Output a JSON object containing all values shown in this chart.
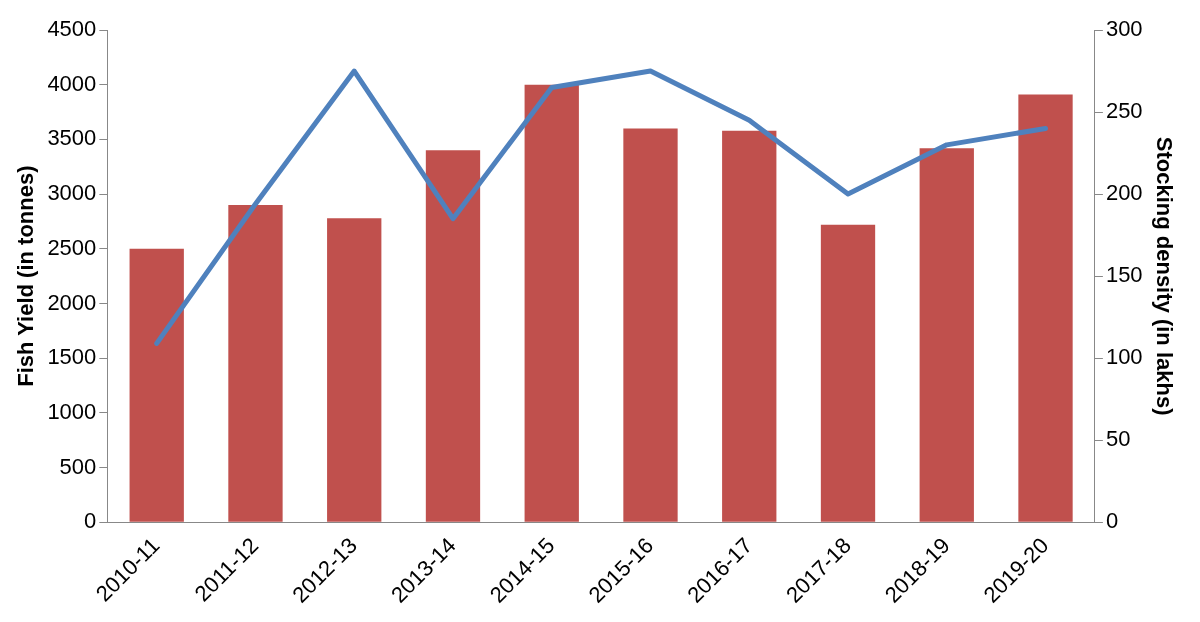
{
  "chart_data": {
    "type": "bar",
    "ylabel": "Fish Yield (in tonnes)",
    "y2label": "Stocking density (in lakhs)",
    "categories": [
      "2010-11",
      "2011-12",
      "2012-13",
      "2013-14",
      "2014-15",
      "2015-16",
      "2016-17",
      "2017-18",
      "2018-19",
      "2019-20"
    ],
    "series": [
      {
        "color": "#c0504d",
        "values": [
          2500,
          2900,
          2780,
          3400,
          4000,
          3600,
          3580,
          2720,
          3420,
          3910
        ]
      },
      {
        "type": "line",
        "axis": "y2",
        "color": "#4f81bd",
        "marker": "none",
        "line_style": "solid",
        "values": [
          109,
          194,
          275,
          185,
          265,
          275,
          245,
          200,
          230,
          240
        ]
      }
    ],
    "ylim": [
      0,
      4500
    ],
    "yticks": [
      0,
      500,
      1000,
      1500,
      2000,
      2500,
      3000,
      3500,
      4000,
      4500
    ],
    "y2lim": [
      0,
      300
    ],
    "y2ticks": [
      0,
      50,
      100,
      150,
      200,
      250,
      300
    ],
    "grid": false,
    "legend": false
  }
}
